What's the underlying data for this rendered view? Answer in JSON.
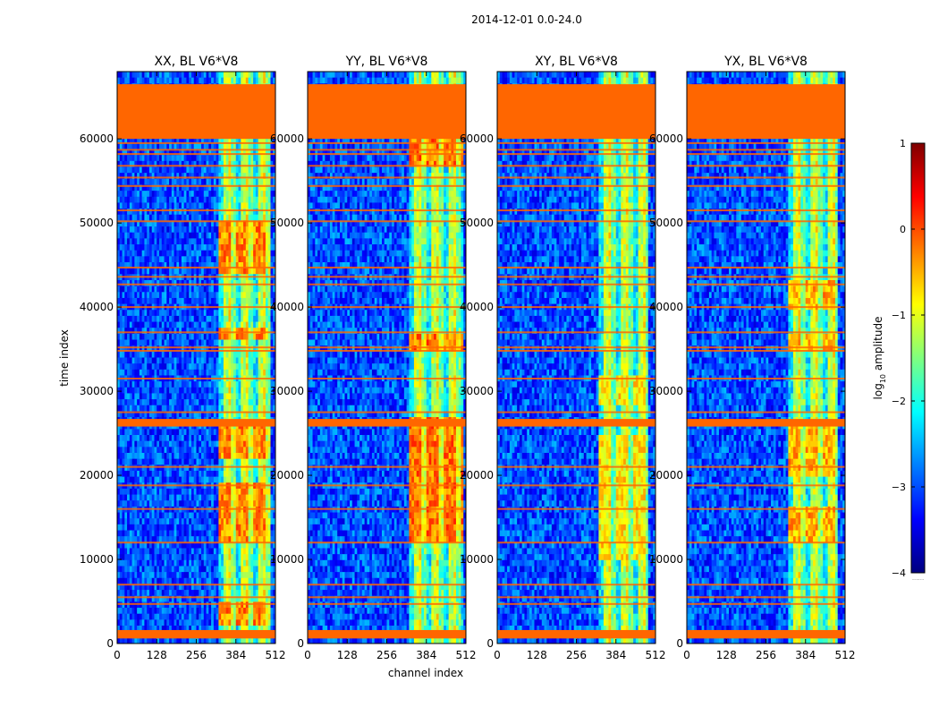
{
  "figure": {
    "suptitle": "2014-12-01 0.0-24.0",
    "xlabel": "channel index",
    "ylabel": "time index"
  },
  "colorbar": {
    "label_prefix": "log",
    "label_sub": "10",
    "label_suffix": " amplitude",
    "range": [
      -4,
      1
    ],
    "ticks": [
      1,
      0,
      -1,
      -2,
      -3,
      -4
    ],
    "tick_labels": [
      "1",
      "0",
      "−1",
      "−2",
      "−3",
      "−4"
    ],
    "extra_marker": "......",
    "colormap": "jet",
    "colors": [
      "#00007f",
      "#0000ff",
      "#007fff",
      "#00ffff",
      "#7fff7f",
      "#ffff00",
      "#ff7f00",
      "#ff0000",
      "#7f0000"
    ]
  },
  "chart_data": {
    "type": "heatmap",
    "colormap": "jet",
    "value_range": [
      -4,
      1
    ],
    "x_range": [
      0,
      512
    ],
    "y_range": [
      0,
      68000
    ],
    "x_ticks": [
      0,
      128,
      256,
      384,
      512
    ],
    "x_tick_labels": [
      "0",
      "128",
      "256",
      "384",
      "512"
    ],
    "y_ticks": [
      0,
      10000,
      20000,
      30000,
      40000,
      50000,
      60000
    ],
    "y_tick_labels": [
      "0",
      "10000",
      "20000",
      "30000",
      "40000",
      "50000",
      "60000"
    ],
    "flagged_color": "#ff6600",
    "flagged_time_blocks": [
      [
        60000,
        66500
      ],
      [
        600,
        1600
      ],
      [
        25800,
        26700
      ]
    ],
    "flag_lines": [
      4700,
      5500,
      7000,
      12000,
      16000,
      18800,
      21000,
      27500,
      31500,
      34800,
      35200,
      37000,
      40000,
      42700,
      43600,
      44700,
      50200,
      51500,
      54400,
      55400,
      56800,
      58200,
      58700,
      59500
    ],
    "panels": [
      {
        "title": "XX, BL V6*V8",
        "band_channels": [
          330,
          495
        ],
        "hot_time_ranges": [
          [
            2000,
            5000
          ],
          [
            12000,
            19000
          ],
          [
            22000,
            26000
          ],
          [
            36000,
            37500
          ],
          [
            44000,
            50000
          ]
        ],
        "hot_level": -0.3
      },
      {
        "title": "YY, BL V6*V8",
        "band_channels": [
          330,
          500
        ],
        "hot_time_ranges": [
          [
            12000,
            27000
          ],
          [
            35000,
            37000
          ],
          [
            57000,
            60000
          ]
        ],
        "hot_level": -0.2
      },
      {
        "title": "XY, BL V6*V8",
        "band_channels": [
          330,
          485
        ],
        "hot_time_ranges": [
          [
            10000,
            25000
          ],
          [
            28000,
            32000
          ]
        ],
        "hot_level": -0.8
      },
      {
        "title": "YX, BL V6*V8",
        "band_channels": [
          330,
          490
        ],
        "hot_time_ranges": [
          [
            12000,
            16000
          ],
          [
            20000,
            26000
          ],
          [
            35000,
            37000
          ],
          [
            40000,
            43000
          ]
        ],
        "hot_level": -0.5
      }
    ]
  }
}
